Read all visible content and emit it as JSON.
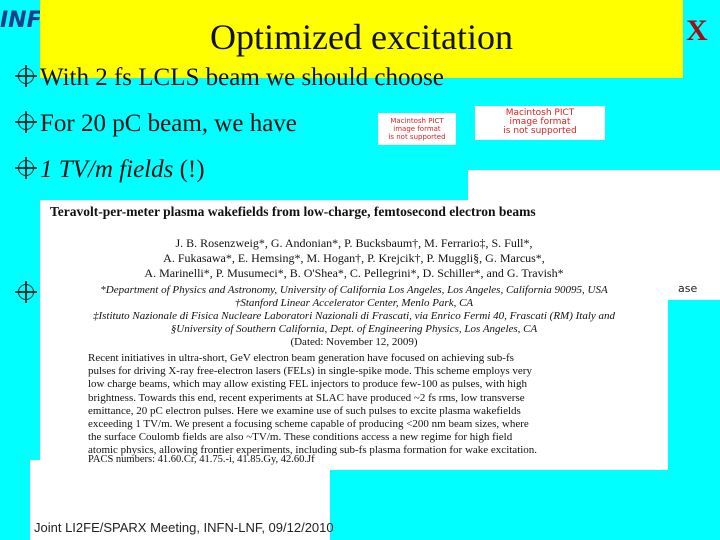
{
  "header": {
    "title": "Optimized excitation",
    "logo_left": "INF",
    "logo_right": "X"
  },
  "bullets": [
    {
      "parts": [
        "With 2 fs LCLS beam we should choose"
      ]
    },
    {
      "parts": [
        "For 20 pC beam, we have"
      ]
    },
    {
      "parts": [
        "1 TV/m fields",
        "(!)"
      ]
    },
    {
      "parts": [
        "ase"
      ]
    }
  ],
  "placeholders": [
    {
      "lines": [
        "Macintosh PICT",
        "image format",
        "is not supported"
      ]
    },
    {
      "lines": [
        "Macintosh PICT",
        "image format",
        "is not supported"
      ]
    }
  ],
  "paper": {
    "title": "Teravolt-per-meter plasma wakefields from low-charge, femtosecond electron beams",
    "authors": [
      "J. B. Rosenzweig*, G. Andonian*, P. Bucksbaum†, M. Ferrario‡, S. Full*,",
      "A. Fukasawa*, E. Hemsing*, M. Hogan†, P. Krejcik†, P. Muggli§, G. Marcus*,",
      "A. Marinelli*, P. Musumeci*, B. O'Shea*, C. Pellegrini*, D. Schiller*, and G. Travish*"
    ],
    "affiliations": [
      "*Department of Physics and Astronomy, University of California Los Angeles, Los Angeles, California 90095, USA",
      "†Stanford Linear Accelerator Center, Menlo Park, CA",
      "‡Istituto Nazionale di Fisica Nucleare Laboratori Nazionali di Frascati, via Enrico Fermi 40, Frascati (RM) Italy and",
      "§University of Southern California, Dept. of Engineering Physics, Los Angeles, CA",
      "(Dated: November 12, 2009)"
    ],
    "abstract": [
      "Recent initiatives in ultra-short, GeV electron beam generation have focused on achieving sub-fs",
      "pulses for driving X-ray free-electron lasers (FELs) in single-spike mode. This scheme employs very",
      "low charge beams, which may allow existing FEL injectors to produce few-100 as pulses, with high",
      "brightness. Towards this end, recent experiments at SLAC have produced ~2 fs rms, low transverse",
      "emittance, 20 pC electron pulses. Here we examine use of such pulses to excite plasma wakefields",
      "exceeding 1 TV/m. We present a focusing scheme capable of producing <200 nm beam sizes, where",
      "the surface Coulomb fields are also ~TV/m. These conditions access a new regime for high field",
      "atomic physics, allowing frontier experiments, including sub-fs plasma formation for wake excitation."
    ],
    "pacs": "PACS numbers: 41.60.Cr, 41.75.-i, 41.85.Gy, 42.60.Jf"
  },
  "footer": "Joint LI2FE/SPARX Meeting, INFN-LNF, 09/12/2010"
}
